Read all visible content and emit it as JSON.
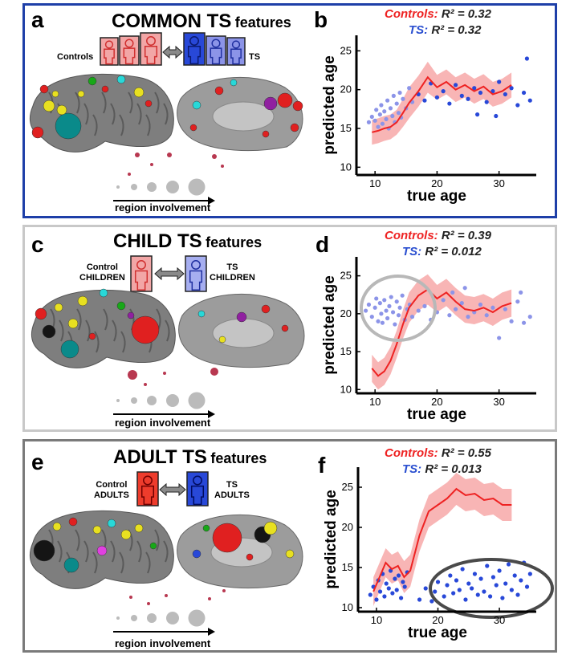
{
  "panels": [
    {
      "letter": "a",
      "title_big": "COMMON TS",
      "title_small": "features",
      "left_label": "Controls",
      "right_label": "TS",
      "involvement": "region involvement"
    },
    {
      "letter": "c",
      "title_big": "CHILD TS",
      "title_small": "features",
      "left_label": "Control\nCHILDREN",
      "right_label": "TS\nCHILDREN",
      "involvement": "region involvement"
    },
    {
      "letter": "e",
      "title_big": "ADULT TS",
      "title_small": "features",
      "left_label": "Control\nADULTS",
      "right_label": "TS\nADULTS",
      "involvement": "region involvement"
    }
  ],
  "chart_data": [
    {
      "letter": "b",
      "type": "scatter",
      "r2_controls_label": "Controls:",
      "r2_controls": "R² = 0.32",
      "r2_ts_label": "TS:",
      "r2_ts": "R² = 0.32",
      "xlabel": "true age",
      "ylabel": "predicted age",
      "xlim": [
        7,
        36
      ],
      "ylim": [
        9,
        27
      ],
      "xticks": [
        10,
        20,
        30
      ],
      "yticks": [
        10,
        15,
        20,
        25
      ],
      "controls_line": {
        "x": [
          9.5,
          10.5,
          11.5,
          12.5,
          13.5,
          14.5,
          15.5,
          17,
          18.5,
          20,
          21.5,
          23,
          24.5,
          26,
          27.5,
          29,
          30.5,
          32
        ],
        "y": [
          14.5,
          14.7,
          15.0,
          15.2,
          15.8,
          17.0,
          18.3,
          19.8,
          21.6,
          20.3,
          21.0,
          20.0,
          20.6,
          19.8,
          20.4,
          19.4,
          19.8,
          20.6
        ],
        "band": [
          1.6,
          1.6,
          1.6,
          1.6,
          1.6,
          1.8,
          2.0,
          2.0,
          2.0,
          1.6,
          1.6,
          1.6,
          1.6,
          1.6,
          1.6,
          1.6,
          1.6,
          1.6
        ]
      },
      "ts_points": [
        [
          9,
          15.8
        ],
        [
          9.5,
          16.5
        ],
        [
          10,
          16.0
        ],
        [
          10.2,
          17.4
        ],
        [
          10.5,
          15.2
        ],
        [
          10.8,
          16.8
        ],
        [
          11,
          18.0
        ],
        [
          11.2,
          15.6
        ],
        [
          11.5,
          17.2
        ],
        [
          11.8,
          16.2
        ],
        [
          12,
          18.6
        ],
        [
          12.2,
          15.0
        ],
        [
          12.5,
          17.6
        ],
        [
          12.8,
          16.6
        ],
        [
          13,
          19.2
        ],
        [
          13.2,
          15.8
        ],
        [
          13.5,
          18.2
        ],
        [
          13.8,
          17.0
        ],
        [
          14,
          19.6
        ],
        [
          14.2,
          16.4
        ],
        [
          14.5,
          18.8
        ],
        [
          15,
          17.6
        ],
        [
          15.5,
          20.2
        ],
        [
          16,
          18.4
        ],
        [
          17,
          19.4
        ],
        [
          18,
          18.6
        ],
        [
          19,
          20.8
        ],
        [
          20,
          19.0
        ],
        [
          21,
          19.8
        ],
        [
          22,
          18.2
        ],
        [
          23,
          20.6
        ],
        [
          24,
          19.2
        ],
        [
          25,
          18.8
        ],
        [
          26,
          20.2
        ],
        [
          27,
          19.6
        ],
        [
          28,
          18.4
        ],
        [
          29,
          19.8
        ],
        [
          30,
          21.0
        ],
        [
          31,
          19.4
        ],
        [
          32,
          20.2
        ],
        [
          33,
          18.0
        ],
        [
          34,
          19.6
        ],
        [
          34.5,
          24.0
        ],
        [
          35,
          18.6
        ],
        [
          29.5,
          16.6
        ],
        [
          26.5,
          16.8
        ]
      ]
    },
    {
      "letter": "d",
      "type": "scatter",
      "r2_controls_label": "Controls:",
      "r2_controls": "R² = 0.39",
      "r2_ts_label": "TS:",
      "r2_ts": "R² = 0.012",
      "xlabel": "true age",
      "ylabel": "predicted age",
      "xlim": [
        7,
        36
      ],
      "ylim": [
        9.5,
        27.5
      ],
      "xticks": [
        10,
        20,
        30
      ],
      "yticks": [
        10,
        15,
        20,
        25
      ],
      "controls_line": {
        "x": [
          9.5,
          10.5,
          11.5,
          12.5,
          13.5,
          14.5,
          15.5,
          17,
          18.5,
          20,
          21.5,
          23,
          24.5,
          26,
          27.5,
          29,
          30.5,
          32
        ],
        "y": [
          12.8,
          11.8,
          12.4,
          13.8,
          16.0,
          18.6,
          20.8,
          22.4,
          23.2,
          22.0,
          22.8,
          21.6,
          20.6,
          20.4,
          20.8,
          20.2,
          21.0,
          21.4
        ],
        "band": [
          1.8,
          1.8,
          1.8,
          1.8,
          1.8,
          1.9,
          2.0,
          2.0,
          2.0,
          1.8,
          1.8,
          1.8,
          1.8,
          1.8,
          1.8,
          1.8,
          1.8,
          1.8
        ]
      },
      "ts_points": [
        [
          8.5,
          20.4
        ],
        [
          9,
          21.2
        ],
        [
          9.5,
          19.6
        ],
        [
          10,
          20.8
        ],
        [
          10.2,
          22.0
        ],
        [
          10.5,
          19.0
        ],
        [
          10.8,
          21.4
        ],
        [
          11,
          20.0
        ],
        [
          11.2,
          18.8
        ],
        [
          11.5,
          21.8
        ],
        [
          11.8,
          20.4
        ],
        [
          12,
          19.4
        ],
        [
          12.3,
          21.0
        ],
        [
          12.6,
          22.2
        ],
        [
          12.9,
          20.2
        ],
        [
          13.2,
          18.6
        ],
        [
          13.5,
          21.6
        ],
        [
          13.8,
          19.8
        ],
        [
          14,
          20.8
        ],
        [
          14.4,
          22.4
        ],
        [
          14.8,
          19.2
        ],
        [
          15.2,
          20.6
        ],
        [
          15.6,
          21.2
        ],
        [
          16,
          19.6
        ],
        [
          17,
          20.4
        ],
        [
          18,
          21.0
        ],
        [
          19,
          19.2
        ],
        [
          20,
          20.2
        ],
        [
          21,
          21.8
        ],
        [
          22,
          19.8
        ],
        [
          23,
          20.6
        ],
        [
          24,
          21.4
        ],
        [
          25,
          19.6
        ],
        [
          26,
          20.2
        ],
        [
          27,
          21.2
        ],
        [
          28,
          19.8
        ],
        [
          29,
          20.8
        ],
        [
          30,
          16.8
        ],
        [
          31,
          20.6
        ],
        [
          32,
          19.0
        ],
        [
          33,
          21.6
        ],
        [
          33.5,
          22.8
        ],
        [
          34,
          18.8
        ],
        [
          35,
          19.6
        ],
        [
          24.5,
          23.4
        ],
        [
          22.5,
          22.8
        ]
      ]
    },
    {
      "letter": "f",
      "type": "scatter",
      "r2_controls_label": "Controls:",
      "r2_controls": "R² = 0.55",
      "r2_ts_label": "TS:",
      "r2_ts": "R² = 0.013",
      "xlabel": "true age",
      "ylabel": "predicted age",
      "xlim": [
        7,
        36
      ],
      "ylim": [
        9.5,
        27.5
      ],
      "xticks": [
        10,
        20,
        30
      ],
      "yticks": [
        10,
        15,
        20,
        25
      ],
      "controls_line": {
        "x": [
          9.5,
          10.5,
          11.5,
          12.5,
          13.5,
          14.5,
          15.5,
          17,
          18.5,
          20,
          21.5,
          23,
          24.5,
          26,
          27.5,
          29,
          30.5,
          32
        ],
        "y": [
          12.0,
          13.8,
          15.6,
          14.8,
          15.2,
          13.8,
          14.6,
          19.0,
          22.0,
          22.8,
          23.6,
          24.8,
          24.0,
          24.2,
          23.4,
          23.6,
          22.8,
          22.8
        ],
        "band": [
          1.8,
          1.8,
          1.8,
          1.8,
          1.8,
          2.0,
          2.0,
          2.0,
          2.0,
          2.0,
          2.0,
          2.0,
          2.0,
          2.0,
          2.0,
          2.0,
          2.0,
          2.0
        ]
      },
      "ts_points": [
        [
          9,
          11.6
        ],
        [
          9.5,
          12.6
        ],
        [
          10,
          11.0
        ],
        [
          10.3,
          13.4
        ],
        [
          10.6,
          12.0
        ],
        [
          11,
          14.2
        ],
        [
          11.3,
          11.4
        ],
        [
          11.6,
          13.0
        ],
        [
          12,
          12.4
        ],
        [
          12.3,
          14.6
        ],
        [
          12.6,
          11.8
        ],
        [
          13,
          13.6
        ],
        [
          13.3,
          12.2
        ],
        [
          13.6,
          14.0
        ],
        [
          14,
          11.2
        ],
        [
          14.3,
          13.2
        ],
        [
          14.6,
          12.6
        ],
        [
          15,
          14.4
        ],
        [
          17,
          11.0
        ],
        [
          18,
          12.4
        ],
        [
          19,
          10.8
        ],
        [
          19.5,
          12.0
        ],
        [
          20,
          13.2
        ],
        [
          21,
          11.4
        ],
        [
          21.5,
          12.8
        ],
        [
          22,
          14.0
        ],
        [
          22.5,
          11.8
        ],
        [
          23,
          13.4
        ],
        [
          23.5,
          12.2
        ],
        [
          24,
          14.8
        ],
        [
          24.5,
          11.0
        ],
        [
          25,
          13.0
        ],
        [
          25.5,
          12.4
        ],
        [
          26,
          14.2
        ],
        [
          26.5,
          11.6
        ],
        [
          27,
          13.6
        ],
        [
          27.5,
          12.0
        ],
        [
          28,
          15.2
        ],
        [
          28.5,
          11.4
        ],
        [
          29,
          13.8
        ],
        [
          29.5,
          12.8
        ],
        [
          30,
          14.6
        ],
        [
          30.5,
          11.2
        ],
        [
          31,
          13.0
        ],
        [
          31.5,
          15.4
        ],
        [
          32,
          12.2
        ],
        [
          32.5,
          14.0
        ],
        [
          33,
          11.6
        ],
        [
          33.5,
          13.4
        ],
        [
          34,
          15.6
        ],
        [
          34.5,
          12.6
        ],
        [
          35,
          14.2
        ]
      ]
    }
  ],
  "colors": {
    "controls": "#ee2222",
    "controls_band": "#f7a8a8",
    "ts_child": "#8c94e8",
    "ts_adult": "#2848d8",
    "frame_common": "#1e3fa8",
    "frame_child": "#c8c8c8",
    "frame_adult": "#7a7a7a"
  }
}
